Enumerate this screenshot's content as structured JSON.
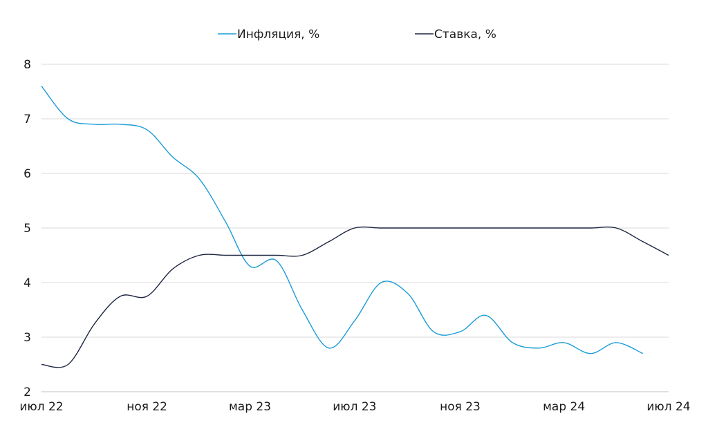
{
  "chart_data": {
    "type": "line",
    "title": "",
    "xlabel": "",
    "ylabel": "",
    "ylim": [
      2,
      8
    ],
    "yticks": [
      2,
      3,
      4,
      5,
      6,
      7,
      8
    ],
    "xtick_labels": [
      "июл 22",
      "ноя 22",
      "мар 23",
      "июл 23",
      "ноя 23",
      "мар 24",
      "июл 24"
    ],
    "grid": true,
    "legend_position": "top",
    "series": [
      {
        "name": "Инфляция, %",
        "color": "#1a9bd7",
        "x": [
          "2022-07-01",
          "2022-08-01",
          "2022-09-01",
          "2022-10-01",
          "2022-11-01",
          "2022-12-01",
          "2023-01-01",
          "2023-02-01",
          "2023-03-01",
          "2023-04-01",
          "2023-05-01",
          "2023-06-01",
          "2023-07-01",
          "2023-08-01",
          "2023-09-01",
          "2023-10-01",
          "2023-11-01",
          "2023-12-01",
          "2024-01-01",
          "2024-02-01",
          "2024-03-01",
          "2024-04-01",
          "2024-05-01",
          "2024-06-01"
        ],
        "values": [
          7.6,
          7.0,
          6.9,
          6.9,
          6.8,
          6.3,
          5.9,
          5.1,
          4.3,
          4.4,
          3.5,
          2.8,
          3.3,
          4.0,
          3.8,
          3.1,
          3.1,
          3.4,
          2.9,
          2.8,
          2.9,
          2.7,
          2.9,
          2.7
        ]
      },
      {
        "name": "Ставка, %",
        "color": "#1c2541",
        "x": [
          "2022-07-01",
          "2022-08-01",
          "2022-09-01",
          "2022-10-01",
          "2022-11-01",
          "2022-12-01",
          "2023-01-01",
          "2023-02-01",
          "2023-03-01",
          "2023-04-01",
          "2023-05-01",
          "2023-06-01",
          "2023-07-01",
          "2023-08-01",
          "2023-09-01",
          "2023-10-01",
          "2023-11-01",
          "2023-12-01",
          "2024-01-01",
          "2024-02-01",
          "2024-03-01",
          "2024-04-01",
          "2024-05-01",
          "2024-06-01",
          "2024-07-01"
        ],
        "values": [
          2.5,
          2.5,
          3.25,
          3.75,
          3.75,
          4.25,
          4.5,
          4.5,
          4.5,
          4.5,
          4.5,
          4.75,
          5.0,
          5.0,
          5.0,
          5.0,
          5.0,
          5.0,
          5.0,
          5.0,
          5.0,
          5.0,
          5.0,
          4.75,
          4.5
        ]
      }
    ]
  }
}
